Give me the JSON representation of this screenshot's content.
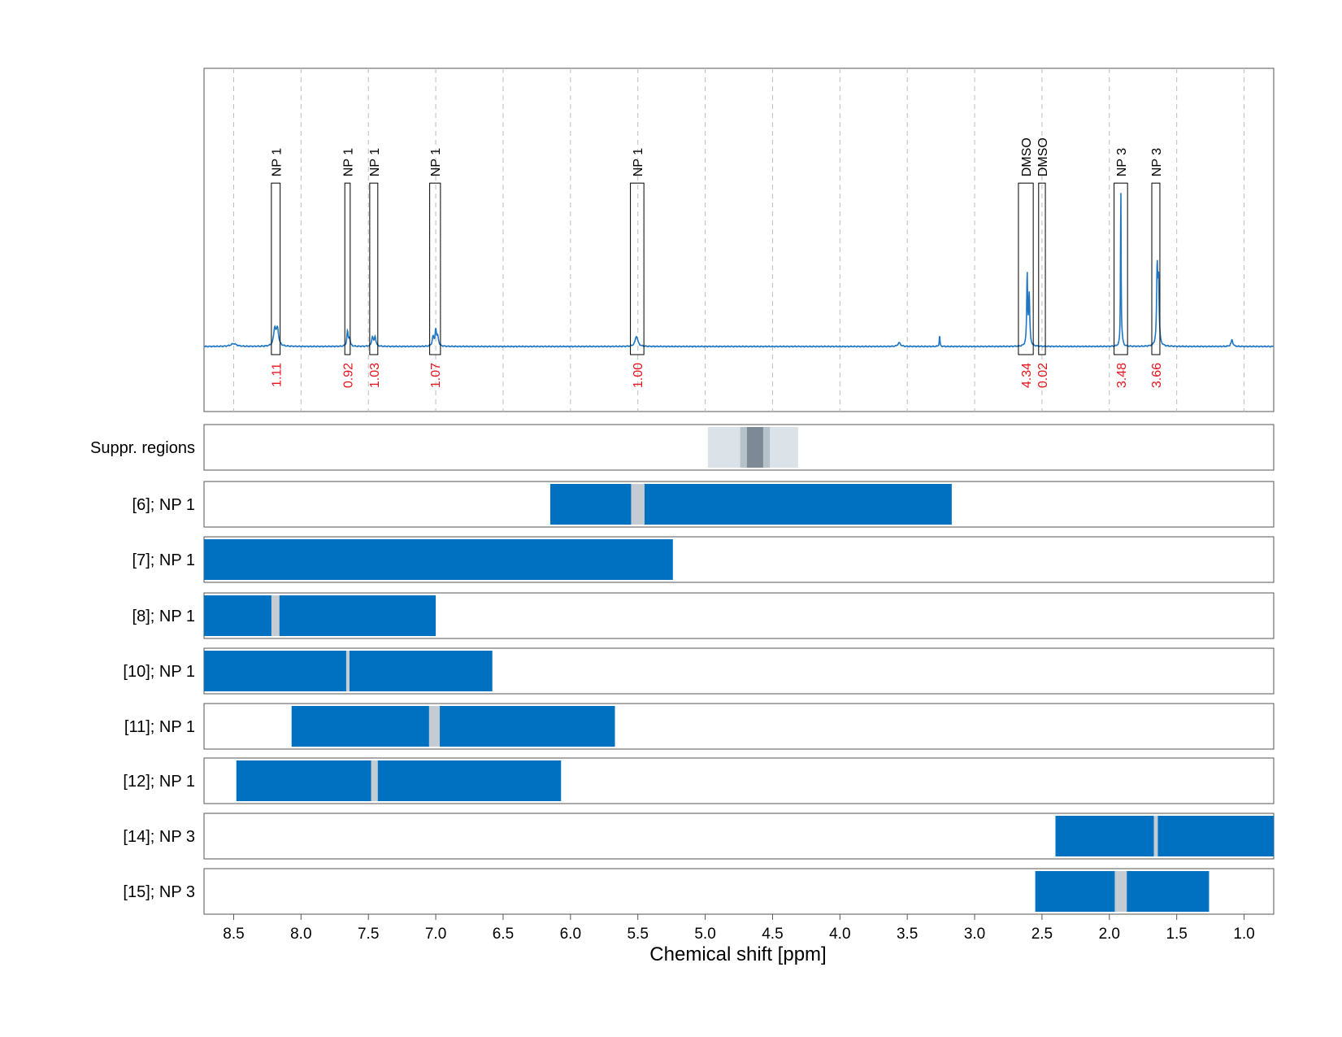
{
  "chart_data": {
    "type": "line",
    "xlabel": "Chemical shift [ppm]",
    "xlim": [
      8.72,
      0.78
    ],
    "x_ticks": [
      8.5,
      8.0,
      7.5,
      7.0,
      6.5,
      6.0,
      5.5,
      5.0,
      4.5,
      4.0,
      3.5,
      3.0,
      2.5,
      2.0,
      1.5,
      1.0
    ],
    "x_tick_labels": [
      "8.5",
      "8.0",
      "7.5",
      "7.0",
      "6.5",
      "6.0",
      "5.5",
      "5.0",
      "4.5",
      "4.0",
      "3.5",
      "3.0",
      "2.5",
      "2.0",
      "1.5",
      "1.0"
    ],
    "grid": true,
    "line_color": "#1f77c4",
    "spectrum_peaks": [
      {
        "x": 8.5,
        "h": 0.015,
        "w": 0.025
      },
      {
        "x": 8.195,
        "h": 0.09,
        "w": 0.01
      },
      {
        "x": 8.175,
        "h": 0.09,
        "w": 0.01
      },
      {
        "x": 7.655,
        "h": 0.08,
        "w": 0.006
      },
      {
        "x": 7.64,
        "h": 0.04,
        "w": 0.006
      },
      {
        "x": 7.47,
        "h": 0.05,
        "w": 0.007
      },
      {
        "x": 7.45,
        "h": 0.05,
        "w": 0.007
      },
      {
        "x": 7.02,
        "h": 0.05,
        "w": 0.007
      },
      {
        "x": 7.0,
        "h": 0.085,
        "w": 0.006
      },
      {
        "x": 6.985,
        "h": 0.05,
        "w": 0.007
      },
      {
        "x": 5.51,
        "h": 0.055,
        "w": 0.012
      },
      {
        "x": 3.56,
        "h": 0.02,
        "w": 0.012
      },
      {
        "x": 3.26,
        "h": 0.06,
        "w": 0.003
      },
      {
        "x": 2.61,
        "h": 0.38,
        "w": 0.004
      },
      {
        "x": 2.595,
        "h": 0.27,
        "w": 0.005
      },
      {
        "x": 1.915,
        "h": 0.88,
        "w": 0.0025
      },
      {
        "x": 1.905,
        "h": 0.03,
        "w": 0.006
      },
      {
        "x": 1.645,
        "h": 0.4,
        "w": 0.005
      },
      {
        "x": 1.635,
        "h": 0.33,
        "w": 0.005
      },
      {
        "x": 1.09,
        "h": 0.035,
        "w": 0.008
      }
    ],
    "annotations": [
      {
        "label": "NP 1",
        "x_from": 8.22,
        "x_to": 8.155,
        "box_top": 0.83,
        "integral": "1.11"
      },
      {
        "label": "NP 1",
        "x_from": 7.675,
        "x_to": 7.635,
        "box_top": 0.83,
        "integral": "0.92"
      },
      {
        "label": "NP 1",
        "x_from": 7.49,
        "x_to": 7.43,
        "box_top": 0.83,
        "integral": "1.03"
      },
      {
        "label": "NP 1",
        "x_from": 7.045,
        "x_to": 6.965,
        "box_top": 0.83,
        "integral": "1.07"
      },
      {
        "label": "NP 1",
        "x_from": 5.555,
        "x_to": 5.455,
        "box_top": 0.83,
        "integral": "1.00"
      },
      {
        "label": "DMSO",
        "x_from": 2.675,
        "x_to": 2.565,
        "box_top": 0.83,
        "integral": "4.34"
      },
      {
        "label": "DMSO",
        "x_from": 2.525,
        "x_to": 2.475,
        "box_top": 0.83,
        "integral": "0.02"
      },
      {
        "label": "NP 3",
        "x_from": 1.965,
        "x_to": 1.865,
        "box_top": 0.83,
        "integral": "3.48"
      },
      {
        "label": "NP 3",
        "x_from": 1.685,
        "x_to": 1.625,
        "box_top": 0.83,
        "integral": "3.66"
      }
    ],
    "tracks": [
      {
        "label": "Suppr. regions",
        "bars": [
          {
            "from": 4.98,
            "to": 4.31,
            "color": "#dbe3e9"
          },
          {
            "from": 4.74,
            "to": 4.52,
            "color": "#b6c1ca"
          },
          {
            "from": 4.69,
            "to": 4.57,
            "color": "#7d8a96"
          }
        ]
      },
      {
        "label": "[6]; NP 1",
        "bars": [
          {
            "from": 6.15,
            "to": 3.17,
            "color": "#0070c0"
          },
          {
            "from": 5.55,
            "to": 5.45,
            "color": "#c4cbd2"
          }
        ]
      },
      {
        "label": "[7]; NP 1",
        "bars": [
          {
            "from": 8.72,
            "to": 5.24,
            "color": "#0070c0"
          }
        ]
      },
      {
        "label": "[8]; NP 1",
        "bars": [
          {
            "from": 8.72,
            "to": 7.0,
            "color": "#0070c0"
          },
          {
            "from": 8.22,
            "to": 8.16,
            "color": "#c4cbd2"
          }
        ]
      },
      {
        "label": "[10]; NP 1",
        "bars": [
          {
            "from": 8.72,
            "to": 6.58,
            "color": "#0070c0"
          },
          {
            "from": 7.665,
            "to": 7.64,
            "color": "#c4cbd2"
          }
        ]
      },
      {
        "label": "[11]; NP 1",
        "bars": [
          {
            "from": 8.07,
            "to": 5.67,
            "color": "#0070c0"
          },
          {
            "from": 7.05,
            "to": 6.97,
            "color": "#c4cbd2"
          }
        ]
      },
      {
        "label": "[12]; NP 1",
        "bars": [
          {
            "from": 8.48,
            "to": 6.07,
            "color": "#0070c0"
          },
          {
            "from": 7.48,
            "to": 7.43,
            "color": "#c4cbd2"
          }
        ]
      },
      {
        "label": "[14]; NP 3",
        "bars": [
          {
            "from": 2.4,
            "to": 0.78,
            "color": "#0070c0"
          },
          {
            "from": 1.67,
            "to": 1.64,
            "color": "#c4cbd2"
          }
        ]
      },
      {
        "label": "[15]; NP 3",
        "bars": [
          {
            "from": 2.55,
            "to": 1.26,
            "color": "#0070c0"
          },
          {
            "from": 1.96,
            "to": 1.87,
            "color": "#c4cbd2"
          }
        ]
      }
    ]
  }
}
